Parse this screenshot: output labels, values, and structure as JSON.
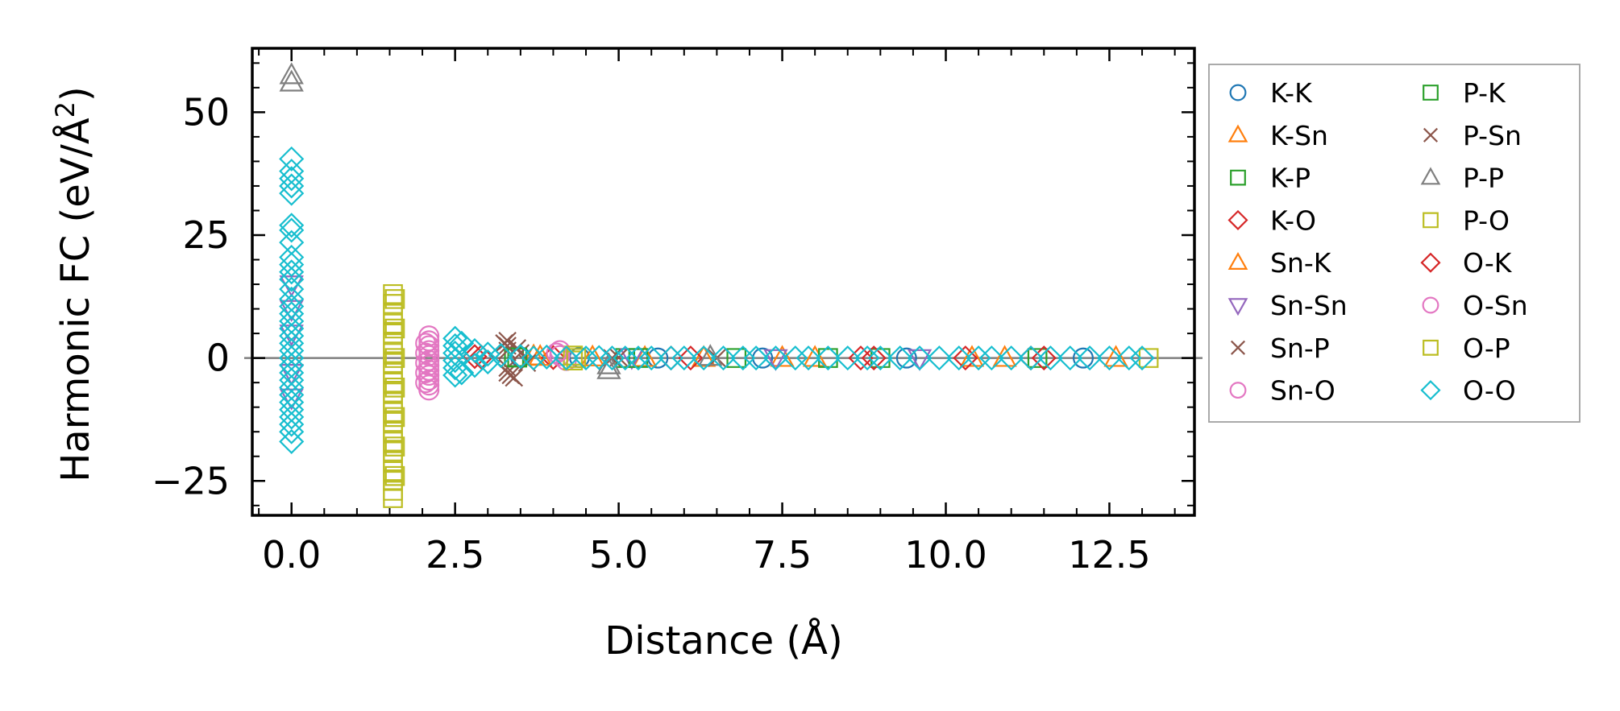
{
  "chart_data": {
    "type": "scatter",
    "title": "",
    "xlabel": "Distance (Å)",
    "ylabel": "Harmonic FC (eV/Å²)",
    "ylabel_parts": {
      "main": "Harmonic FC (eV/Å",
      "sup": "2",
      "close": ")"
    },
    "xlim": [
      -0.6,
      13.8
    ],
    "ylim": [
      -32,
      63
    ],
    "xticks": [
      0.0,
      2.5,
      5.0,
      7.5,
      10.0,
      12.5
    ],
    "xtick_labels": [
      "0.0",
      "2.5",
      "5.0",
      "7.5",
      "10.0",
      "12.5"
    ],
    "yticks": [
      -25,
      0,
      25,
      50
    ],
    "ytick_labels": [
      "−25",
      "0",
      "25",
      "50"
    ],
    "hline_y": 0,
    "legend": {
      "position": "outside-right",
      "columns": 2
    },
    "series": [
      {
        "name": "K-K",
        "marker": "circle",
        "color": "#1f77b4",
        "points": [
          [
            3.5,
            0.2
          ],
          [
            4.4,
            0.1
          ],
          [
            5.6,
            0.0
          ],
          [
            7.2,
            0.0
          ],
          [
            9.4,
            0.0
          ],
          [
            12.1,
            0.0
          ]
        ]
      },
      {
        "name": "K-Sn",
        "marker": "triangle-up",
        "color": "#ff7f0e",
        "points": [
          [
            3.7,
            0.3
          ],
          [
            4.6,
            0.1
          ],
          [
            6.3,
            0.0
          ],
          [
            8.0,
            0.0
          ],
          [
            10.4,
            0.0
          ],
          [
            12.6,
            0.0
          ]
        ]
      },
      {
        "name": "K-P",
        "marker": "square",
        "color": "#2ca02c",
        "points": [
          [
            3.4,
            0.2
          ],
          [
            5.1,
            0.0
          ],
          [
            6.8,
            0.0
          ],
          [
            9.0,
            0.0
          ],
          [
            11.4,
            0.0
          ]
        ]
      },
      {
        "name": "K-O",
        "marker": "diamond",
        "color": "#d62728",
        "points": [
          [
            2.8,
            0.3
          ],
          [
            4.0,
            0.1
          ],
          [
            6.1,
            0.0
          ],
          [
            8.7,
            0.0
          ],
          [
            10.3,
            0.0
          ],
          [
            11.5,
            0.0
          ]
        ]
      },
      {
        "name": "Sn-K",
        "marker": "triangle-up",
        "color": "#ff7f0e",
        "points": [
          [
            3.8,
            0.2
          ],
          [
            5.4,
            0.0
          ],
          [
            7.5,
            0.0
          ],
          [
            10.9,
            0.0
          ]
        ]
      },
      {
        "name": "Sn-Sn",
        "marker": "triangle-down",
        "color": "#9467bd",
        "points": [
          [
            0.0,
            15.0
          ],
          [
            0.0,
            10.0
          ],
          [
            0.0,
            5.0
          ],
          [
            0.0,
            -3.0
          ],
          [
            0.0,
            -8.0
          ],
          [
            5.2,
            0.2
          ],
          [
            7.4,
            0.0
          ],
          [
            9.6,
            0.0
          ]
        ]
      },
      {
        "name": "Sn-P",
        "marker": "x",
        "color": "#8c564b",
        "points": [
          [
            3.3,
            3.5
          ],
          [
            3.3,
            2.5
          ],
          [
            3.3,
            1.5
          ],
          [
            3.3,
            -2.0
          ],
          [
            3.3,
            -3.0
          ],
          [
            3.4,
            -4.0
          ],
          [
            3.5,
            1.0
          ],
          [
            3.6,
            -1.0
          ],
          [
            5.0,
            0.1
          ],
          [
            6.5,
            0.0
          ]
        ]
      },
      {
        "name": "Sn-O",
        "marker": "circle",
        "color": "#e377c2",
        "points": [
          [
            2.1,
            4.5
          ],
          [
            2.1,
            3.5
          ],
          [
            2.1,
            2.5
          ],
          [
            2.1,
            1.5
          ],
          [
            2.1,
            0.5
          ],
          [
            2.1,
            -0.5
          ],
          [
            2.1,
            -1.5
          ],
          [
            2.1,
            -2.5
          ],
          [
            2.1,
            -3.5
          ],
          [
            2.1,
            -4.5
          ],
          [
            2.1,
            -5.5
          ],
          [
            2.1,
            -6.5
          ],
          [
            4.1,
            1.5
          ],
          [
            4.1,
            0.5
          ],
          [
            4.2,
            -0.5
          ]
        ]
      },
      {
        "name": "P-K",
        "marker": "square",
        "color": "#2ca02c",
        "points": [
          [
            3.45,
            0.1
          ],
          [
            5.3,
            0.0
          ],
          [
            8.2,
            0.0
          ]
        ]
      },
      {
        "name": "P-Sn",
        "marker": "x",
        "color": "#8c564b",
        "points": [
          [
            3.25,
            3.0
          ],
          [
            3.35,
            -3.5
          ],
          [
            3.45,
            2.0
          ],
          [
            4.9,
            0.0
          ]
        ]
      },
      {
        "name": "P-P",
        "marker": "triangle-up",
        "color": "#7f7f7f",
        "points": [
          [
            0.0,
            57.5
          ],
          [
            0.0,
            56.0
          ],
          [
            4.85,
            -2.5
          ],
          [
            4.85,
            -1.5
          ],
          [
            6.4,
            0.2
          ]
        ]
      },
      {
        "name": "P-O",
        "marker": "square",
        "color": "#bcbd22",
        "points": [
          [
            1.55,
            13.0
          ],
          [
            1.55,
            11.0
          ],
          [
            1.55,
            9.0
          ],
          [
            1.55,
            7.0
          ],
          [
            1.55,
            5.0
          ],
          [
            1.55,
            3.0
          ],
          [
            1.55,
            1.0
          ],
          [
            1.55,
            -1.0
          ],
          [
            1.55,
            -3.0
          ],
          [
            1.55,
            -5.0
          ],
          [
            1.55,
            -7.0
          ],
          [
            1.55,
            -9.0
          ],
          [
            1.55,
            -11.0
          ],
          [
            1.55,
            -13.0
          ],
          [
            1.55,
            -15.0
          ],
          [
            1.55,
            -17.0
          ],
          [
            1.55,
            -19.0
          ],
          [
            1.55,
            -21.0
          ],
          [
            1.55,
            -23.0
          ],
          [
            1.55,
            -25.0
          ],
          [
            1.55,
            -27.0
          ],
          [
            1.55,
            -28.5
          ],
          [
            4.3,
            0.5
          ],
          [
            4.3,
            -0.5
          ],
          [
            13.1,
            0.0
          ]
        ]
      },
      {
        "name": "O-K",
        "marker": "diamond",
        "color": "#d62728",
        "points": [
          [
            2.9,
            0.2
          ],
          [
            5.8,
            0.0
          ],
          [
            8.9,
            0.0
          ],
          [
            11.3,
            0.0
          ]
        ]
      },
      {
        "name": "O-Sn",
        "marker": "circle",
        "color": "#e377c2",
        "points": [
          [
            2.05,
            3.0
          ],
          [
            2.05,
            1.0
          ],
          [
            2.05,
            -1.0
          ],
          [
            2.05,
            -3.0
          ],
          [
            2.05,
            -5.0
          ],
          [
            4.05,
            1.0
          ]
        ]
      },
      {
        "name": "O-P",
        "marker": "square",
        "color": "#bcbd22",
        "points": [
          [
            1.58,
            12.0
          ],
          [
            1.58,
            6.0
          ],
          [
            1.58,
            0.0
          ],
          [
            1.58,
            -6.0
          ],
          [
            1.58,
            -12.0
          ],
          [
            1.58,
            -18.0
          ],
          [
            1.58,
            -24.0
          ],
          [
            4.35,
            0.0
          ]
        ]
      },
      {
        "name": "O-O",
        "marker": "diamond",
        "color": "#17becf",
        "points": [
          [
            0.0,
            40.5
          ],
          [
            0.0,
            38.0
          ],
          [
            0.0,
            36.5
          ],
          [
            0.0,
            35.0
          ],
          [
            0.0,
            33.5
          ],
          [
            0.0,
            27.0
          ],
          [
            0.0,
            26.0
          ],
          [
            0.0,
            23.5
          ],
          [
            0.0,
            20.5
          ],
          [
            0.0,
            19.0
          ],
          [
            0.0,
            17.5
          ],
          [
            0.0,
            16.0
          ],
          [
            0.0,
            14.0
          ],
          [
            0.0,
            12.0
          ],
          [
            0.0,
            10.5
          ],
          [
            0.0,
            9.0
          ],
          [
            0.0,
            7.5
          ],
          [
            0.0,
            6.0
          ],
          [
            0.0,
            4.5
          ],
          [
            0.0,
            3.0
          ],
          [
            0.0,
            1.5
          ],
          [
            0.0,
            0.0
          ],
          [
            0.0,
            -1.5
          ],
          [
            0.0,
            -3.0
          ],
          [
            0.0,
            -4.5
          ],
          [
            0.0,
            -6.0
          ],
          [
            0.0,
            -7.5
          ],
          [
            0.0,
            -9.0
          ],
          [
            0.0,
            -10.5
          ],
          [
            0.0,
            -12.0
          ],
          [
            0.0,
            -13.5
          ],
          [
            0.0,
            -15.0
          ],
          [
            0.0,
            -17.0
          ],
          [
            2.5,
            4.0
          ],
          [
            2.5,
            2.5
          ],
          [
            2.5,
            1.0
          ],
          [
            2.5,
            -0.5
          ],
          [
            2.5,
            -2.0
          ],
          [
            2.5,
            -3.5
          ],
          [
            2.6,
            3.0
          ],
          [
            2.6,
            -3.0
          ],
          [
            2.8,
            1.5
          ],
          [
            2.8,
            -1.5
          ],
          [
            3.0,
            0.8
          ],
          [
            3.0,
            -0.8
          ],
          [
            3.2,
            0.5
          ],
          [
            3.5,
            0.3
          ],
          [
            3.7,
            0.0
          ],
          [
            3.9,
            0.2
          ],
          [
            4.2,
            0.0
          ],
          [
            4.5,
            0.0
          ],
          [
            4.7,
            0.1
          ],
          [
            4.9,
            0.0
          ],
          [
            5.1,
            0.0
          ],
          [
            5.3,
            0.0
          ],
          [
            5.5,
            0.0
          ],
          [
            5.8,
            0.0
          ],
          [
            6.0,
            0.0
          ],
          [
            6.3,
            0.0
          ],
          [
            6.6,
            0.0
          ],
          [
            6.9,
            0.0
          ],
          [
            7.1,
            0.0
          ],
          [
            7.4,
            0.0
          ],
          [
            7.7,
            0.0
          ],
          [
            7.9,
            0.0
          ],
          [
            8.2,
            0.0
          ],
          [
            8.5,
            0.0
          ],
          [
            8.8,
            0.0
          ],
          [
            9.0,
            0.0
          ],
          [
            9.3,
            0.0
          ],
          [
            9.6,
            0.0
          ],
          [
            9.9,
            0.0
          ],
          [
            10.2,
            0.0
          ],
          [
            10.5,
            0.0
          ],
          [
            10.7,
            0.0
          ],
          [
            11.0,
            0.0
          ],
          [
            11.3,
            0.0
          ],
          [
            11.6,
            0.0
          ],
          [
            11.9,
            0.0
          ],
          [
            12.2,
            0.0
          ],
          [
            12.5,
            0.0
          ],
          [
            12.8,
            0.0
          ],
          [
            13.0,
            0.0
          ]
        ]
      }
    ]
  }
}
